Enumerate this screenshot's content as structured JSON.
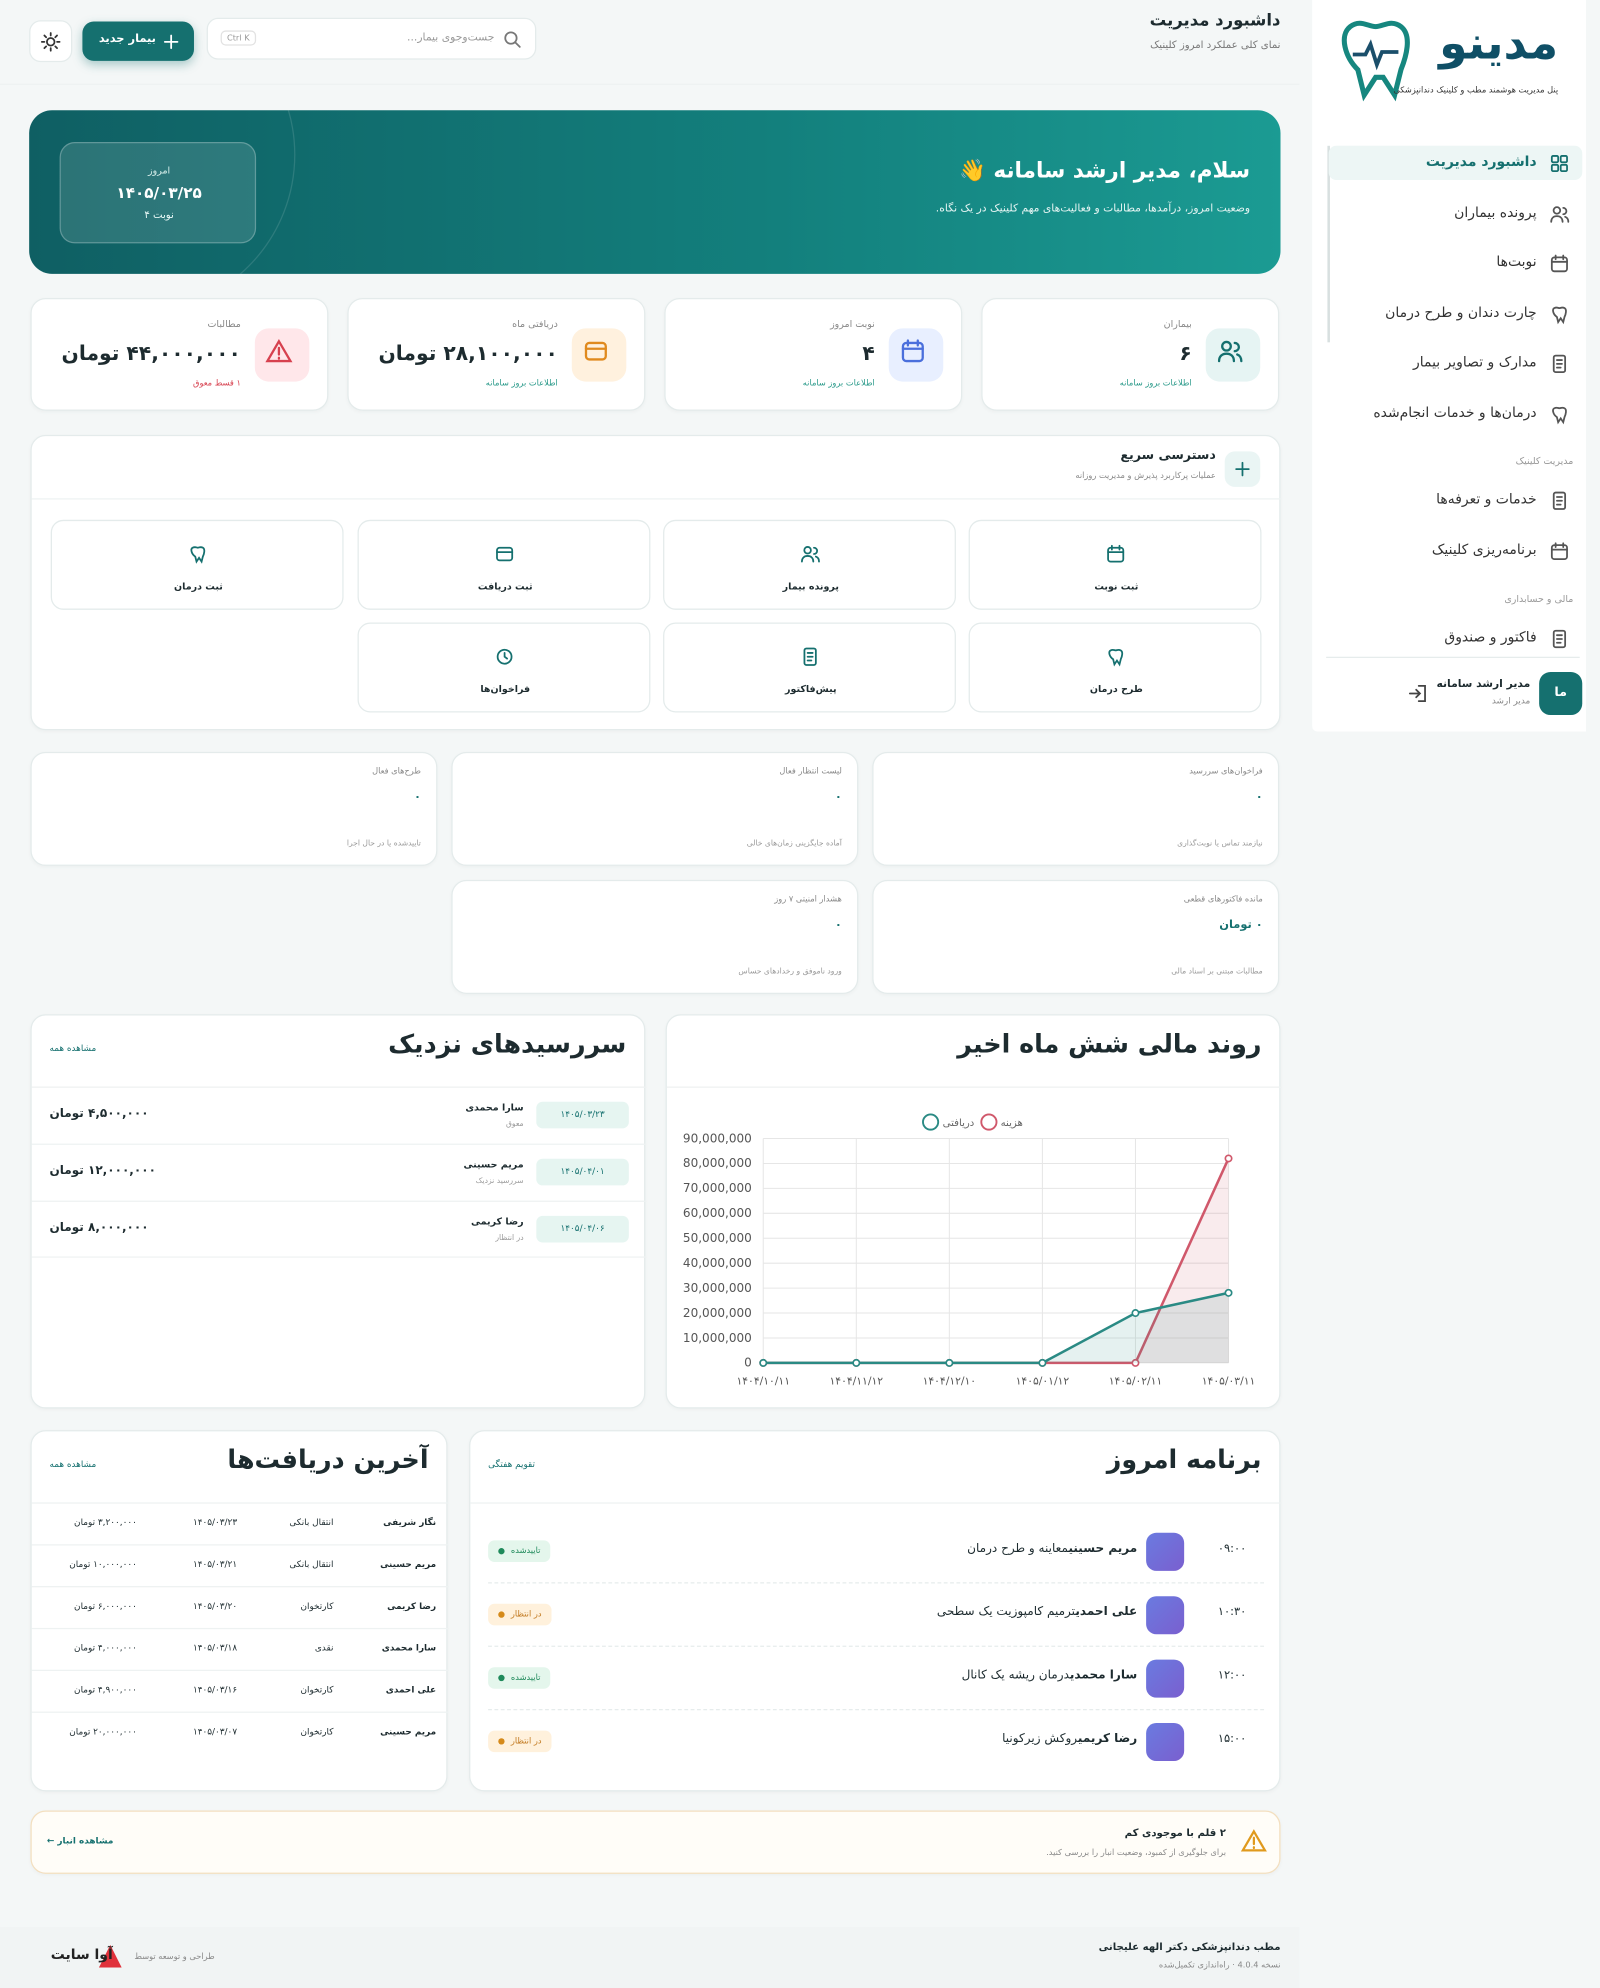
{
  "sidebar": {
    "brand": "مدینو",
    "tagline": "پنل مدیریت هوشمند مطب و کلینیک دندانپزشکی",
    "nav": [
      "داشبورد مدیریت",
      "پرونده بیماران",
      "نوبت‌ها",
      "چارت دندان و طرح درمان",
      "مدارک و تصاویر بیمار",
      "درمان‌ها و خدمات انجام‌شده"
    ],
    "clinic_section": "مدیریت کلینیک",
    "clinic_nav": [
      "خدمات و تعرفه‌ها",
      "برنامه‌ریزی کلینیک"
    ],
    "finance_section": "مالی و حسابداری",
    "finance_nav": [
      "فاکتور و صندوق"
    ],
    "user": {
      "avatar": "ما",
      "name": "مدیر ارشد سامانه",
      "role": "مدیر ارشد"
    }
  },
  "header": {
    "title": "داشبورد مدیریت",
    "subtitle": "نمای کلی عملکرد امروز کلینیک",
    "search_placeholder": "جست‌وجوی بیمار...",
    "shortcut": "Ctrl K",
    "new_patient": "بیمار جدید"
  },
  "hero": {
    "greeting": "سلام، مدیر ارشد سامانه 👋",
    "text": "وضعیت امروز، درآمدها، مطالبات و فعالیت‌های مهم کلینیک در یک نگاه.",
    "today_label": "امروز",
    "date": "۱۴۰۵/۰۳/۲۵",
    "appointments": "۴ نوبت"
  },
  "stats": [
    {
      "label": "بیماران",
      "value": "۶",
      "note": "اطلاعات بروز سامانه"
    },
    {
      "label": "نوبت امروز",
      "value": "۴",
      "note": "اطلاعات بروز سامانه"
    },
    {
      "label": "دریافتی ماه",
      "value": "۲۸,۱۰۰,۰۰۰ تومان",
      "note": "اطلاعات بروز سامانه"
    },
    {
      "label": "مطالبات",
      "value": "۴۴,۰۰۰,۰۰۰ تومان",
      "note": "۱ قسط معوق"
    }
  ],
  "quick_access": {
    "title": "دسترسی سریع",
    "subtitle": "عملیات پرکاربرد پذیرش و مدیریت روزانه",
    "items": [
      "ثبت نوبت",
      "پرونده بیمار",
      "ثبت دریافت",
      "ثبت درمان",
      "طرح درمان",
      "پیش‌فاکتور",
      "فراخوان‌ها"
    ]
  },
  "alerts": [
    {
      "title": "فراخوان‌های سررسید",
      "value": "۰",
      "note": "نیازمند تماس یا نوبت‌گذاری"
    },
    {
      "title": "لیست انتظار فعال",
      "value": "۰",
      "note": "آماده جایگزینی زمان‌های خالی"
    },
    {
      "title": "طرح‌های فعال",
      "value": "۰",
      "note": "تاییدشده یا در حال اجرا"
    },
    {
      "title": "مانده فاکتورهای قطعی",
      "value": "۰ تومان",
      "note": "مطالبات مبتنی بر اسناد مالی"
    },
    {
      "title": "هشدار امنیتی ۷ روز",
      "value": "۰",
      "note": "ورود ناموفق و رخدادهای حساس"
    }
  ],
  "finance_chart": {
    "type": "line",
    "title": "روند مالی شش ماه اخیر",
    "categories": [
      "۱۴۰۴/۱۰/۱۱",
      "۱۴۰۴/۱۱/۱۲",
      "۱۴۰۴/۱۲/۱۰",
      "۱۴۰۵/۰۱/۱۲",
      "۱۴۰۵/۰۲/۱۱",
      "۱۴۰۵/۰۳/۱۱"
    ],
    "series": [
      {
        "name": "هزینه",
        "color": "#d0586b",
        "values": [
          0,
          0,
          0,
          0,
          0,
          82000000
        ]
      },
      {
        "name": "دریافتی",
        "color": "#2a8a84",
        "values": [
          0,
          0,
          0,
          0,
          20000000,
          28100000
        ]
      }
    ],
    "ylim": [
      0,
      90000000
    ],
    "yticks": [
      0,
      {
        "value": 10000000,
        "label": "10,000,000"
      },
      {
        "value": 20000000,
        "label": "20,000,000"
      },
      {
        "value": 30000000,
        "label": "30,000,000"
      },
      {
        "value": 40000000,
        "label": "40,000,000"
      },
      {
        "value": 50000000,
        "label": "50,000,000"
      },
      {
        "value": 60000000,
        "label": "60,000,000"
      },
      {
        "value": 70000000,
        "label": "70,000,000"
      },
      {
        "value": 80000000,
        "label": "80,000,000"
      },
      {
        "value": 90000000,
        "label": "90,000,000"
      }
    ],
    "grid": true
  },
  "due_soon": {
    "title": "سررسیدهای نزدیک",
    "link": "مشاهده همه",
    "rows": [
      {
        "date": "۱۴۰۵/۰۳/۲۳",
        "name": "سارا محمدی",
        "status": "معوق",
        "amount": "۴,۵۰۰,۰۰۰ تومان"
      },
      {
        "date": "۱۴۰۵/۰۴/۰۱",
        "name": "مریم حسینی",
        "status": "سررسید نزدیک",
        "amount": "۱۲,۰۰۰,۰۰۰ تومان"
      },
      {
        "date": "۱۴۰۵/۰۴/۰۶",
        "name": "رضا کریمی",
        "status": "در انتظار",
        "amount": "۸,۰۰۰,۰۰۰ تومان"
      }
    ]
  },
  "today_schedule": {
    "title": "برنامه امروز",
    "link": "تقویم هفتگی",
    "rows": [
      {
        "time": "۰۹:۰۰",
        "patient": "مریم حسینی",
        "service": "معاینه و طرح درمان",
        "status": "تاییدشده"
      },
      {
        "time": "۱۰:۳۰",
        "patient": "علی احمدی",
        "service": "ترمیم کامپوزیت یک سطحی",
        "status": "در انتظار"
      },
      {
        "time": "۱۲:۰۰",
        "patient": "سارا محمدی",
        "service": "درمان ریشه یک کانال",
        "status": "تاییدشده"
      },
      {
        "time": "۱۵:۰۰",
        "patient": "رضا کریمی",
        "service": "روکش زیرکونیا",
        "status": "در انتظار"
      }
    ]
  },
  "receipts": {
    "title": "آخرین دریافت‌ها",
    "link": "مشاهده همه",
    "rows": [
      [
        "نگار شریفی",
        "انتقال بانکی",
        "۱۴۰۵/۰۳/۲۳",
        "۳,۲۰۰,۰۰۰ تومان"
      ],
      [
        "مریم حسینی",
        "انتقال بانکی",
        "۱۴۰۵/۰۳/۲۱",
        "۱۰,۰۰۰,۰۰۰ تومان"
      ],
      [
        "رضا کریمی",
        "کارتخوان",
        "۱۴۰۵/۰۳/۲۰",
        "۶,۰۰۰,۰۰۰ تومان"
      ],
      [
        "سارا محمدی",
        "نقدی",
        "۱۴۰۵/۰۳/۱۸",
        "۴,۰۰۰,۰۰۰ تومان"
      ],
      [
        "علی احمدی",
        "کارتخوان",
        "۱۴۰۵/۰۳/۱۶",
        "۴,۹۰۰,۰۰۰ تومان"
      ],
      [
        "مریم حسینی",
        "کارتخوان",
        "۱۴۰۵/۰۳/۰۷",
        "۲۰,۰۰۰,۰۰۰ تومان"
      ]
    ]
  },
  "inventory_alert": {
    "title": "۲ قلم با موجودی کم",
    "text": "برای جلوگیری از کمبود، وضعیت انبار را بررسی کنید.",
    "link": "مشاهده انبار ←"
  },
  "footer": {
    "clinic": "مطب دندانپزشکی دکتر الهه علیجانی",
    "version": "نسخه 4.0.4 · راه‌اندازی تکمیل‌شده",
    "credit": "طراحی و توسعه توسط",
    "brand": "آوا سایت"
  }
}
